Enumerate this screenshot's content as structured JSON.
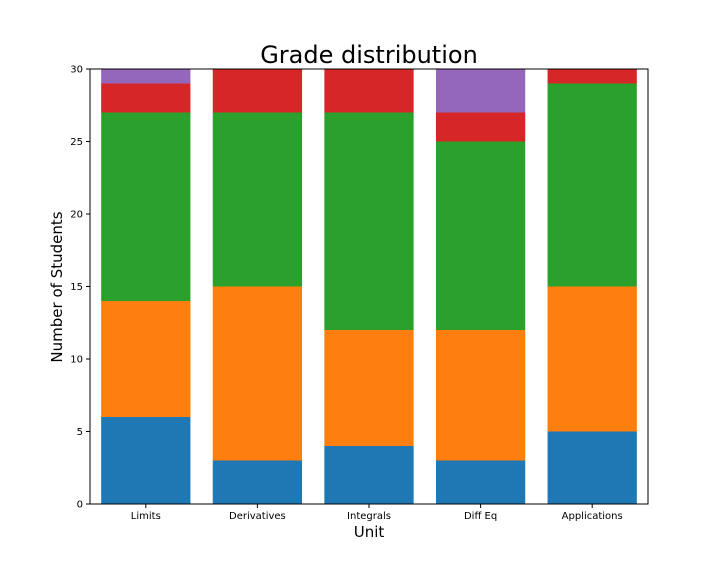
{
  "chart_data": {
    "type": "bar",
    "stacked": true,
    "title": "Grade distribution",
    "xlabel": "Unit",
    "ylabel": "Number of Students",
    "ylim": [
      0,
      30
    ],
    "yticks": [
      "0",
      "5",
      "10",
      "15",
      "20",
      "25",
      "30"
    ],
    "categories": [
      "Limits",
      "Derivatives",
      "Integrals",
      "Diff Eq",
      "Applications"
    ],
    "series": [
      {
        "color": "#1f77b4",
        "values": [
          6,
          3,
          4,
          3,
          5
        ]
      },
      {
        "color": "#ff7f0e",
        "values": [
          8,
          12,
          8,
          9,
          10
        ]
      },
      {
        "color": "#2ca02c",
        "values": [
          13,
          12,
          15,
          13,
          14
        ]
      },
      {
        "color": "#d62728",
        "values": [
          2,
          3,
          3,
          2,
          1
        ]
      },
      {
        "color": "#9467bd",
        "values": [
          1,
          0,
          0,
          3,
          0
        ]
      }
    ],
    "grid": false,
    "legend": "none"
  }
}
